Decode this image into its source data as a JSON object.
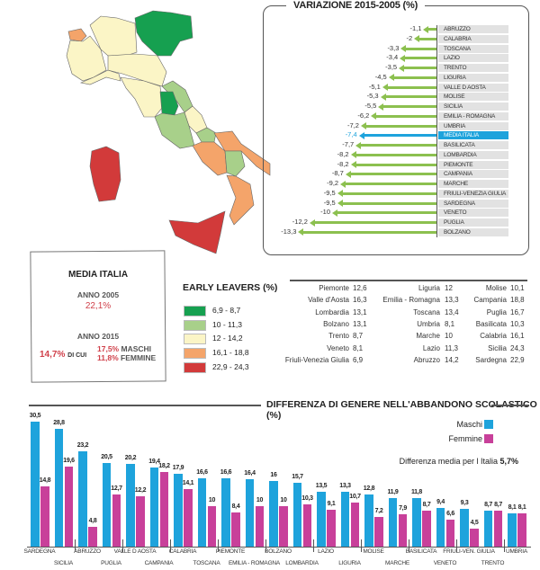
{
  "map": {
    "regions": [
      {
        "name": "valle-d-aosta",
        "color": "#f4a46a"
      },
      {
        "name": "piemonte",
        "color": "#fbf5c6"
      },
      {
        "name": "lombardia",
        "color": "#fbf5c6"
      },
      {
        "name": "trentino-veneto-friuli",
        "color": "#16a050"
      },
      {
        "name": "liguria",
        "color": "#fbf5c6"
      },
      {
        "name": "emilia-romagna",
        "color": "#fbf5c6"
      },
      {
        "name": "toscana",
        "color": "#fbf5c6"
      },
      {
        "name": "marche",
        "color": "#a8d08a"
      },
      {
        "name": "umbria",
        "color": "#16a050"
      },
      {
        "name": "lazio",
        "color": "#a8d08a"
      },
      {
        "name": "abruzzo",
        "color": "#fbf5c6"
      },
      {
        "name": "molise",
        "color": "#a8d08a"
      },
      {
        "name": "campania",
        "color": "#f4a46a"
      },
      {
        "name": "puglia",
        "color": "#f4a46a"
      },
      {
        "name": "basilicata",
        "color": "#a8d08a"
      },
      {
        "name": "calabria",
        "color": "#f4a46a"
      },
      {
        "name": "sicilia",
        "color": "#d23a3a"
      },
      {
        "name": "sardegna",
        "color": "#d23a3a"
      }
    ]
  },
  "variation": {
    "title": "VARIAZIONE 2015-2005 (%)",
    "rows": [
      {
        "label": "ABRUZZO",
        "value": -1.1,
        "text": "-1,1"
      },
      {
        "label": "CALABRIA",
        "value": -2,
        "text": "-2"
      },
      {
        "label": "TOSCANA",
        "value": -3.3,
        "text": "-3,3"
      },
      {
        "label": "LAZIO",
        "value": -3.4,
        "text": "-3,4"
      },
      {
        "label": "TRENTO",
        "value": -3.5,
        "text": "-3,5"
      },
      {
        "label": "LIGURIA",
        "value": -4.5,
        "text": "-4,5"
      },
      {
        "label": "VALLE D AOSTA",
        "value": -5.1,
        "text": "-5,1"
      },
      {
        "label": "MOLISE",
        "value": -5.3,
        "text": "-5,3"
      },
      {
        "label": "SICILIA",
        "value": -5.5,
        "text": "-5,5"
      },
      {
        "label": "EMILIA - ROMAGNA",
        "value": -6.2,
        "text": "-6,2"
      },
      {
        "label": "UMBRIA",
        "value": -7.2,
        "text": "-7,2"
      },
      {
        "label": "MEDIA ITALIA",
        "value": -7.4,
        "text": "-7,4",
        "highlight": true
      },
      {
        "label": "BASILICATA",
        "value": -7.7,
        "text": "-7,7"
      },
      {
        "label": "LOMBARDIA",
        "value": -8.2,
        "text": "-8,2"
      },
      {
        "label": "PIEMONTE",
        "value": -8.2,
        "text": "-8,2"
      },
      {
        "label": "CAMPANIA",
        "value": -8.7,
        "text": "-8,7"
      },
      {
        "label": "MARCHE",
        "value": -9.2,
        "text": "-9,2"
      },
      {
        "label": "FRIULI-VENEZIA GIULIA",
        "value": -9.5,
        "text": "-9,5"
      },
      {
        "label": "SARDEGNA",
        "value": -9.5,
        "text": "-9,5"
      },
      {
        "label": "VENETO",
        "value": -10,
        "text": "-10"
      },
      {
        "label": "PUGLIA",
        "value": -12.2,
        "text": "-12,2"
      },
      {
        "label": "BOLZANO",
        "value": -13.3,
        "text": "-13,3"
      }
    ]
  },
  "media": {
    "title": "MEDIA ITALIA",
    "y2005_label": "ANNO 2005",
    "y2005_value": "22,1%",
    "y2015_label": "ANNO 2015",
    "y2015_value": "14,7%",
    "di_cui": "DI CUI",
    "maschi_value": "17,5%",
    "maschi_label": "MASCHI",
    "femmine_value": "11,8%",
    "femmine_label": "FEMMINE"
  },
  "legend": {
    "title": "EARLY LEAVERS (%)",
    "items": [
      {
        "label": "6,9 - 8,7",
        "color": "#16a050"
      },
      {
        "label": "10 - 11,3",
        "color": "#a8d08a"
      },
      {
        "label": "12 - 14,2",
        "color": "#fbf5c6"
      },
      {
        "label": "16,1 - 18,8",
        "color": "#f4a46a"
      },
      {
        "label": "22,9 - 24,3",
        "color": "#d23a3a"
      }
    ]
  },
  "table": {
    "columns": [
      [
        [
          "Piemonte",
          "12,6"
        ],
        [
          "Valle d'Aosta",
          "16,3"
        ],
        [
          "Lombardia",
          "13,1"
        ],
        [
          "Bolzano",
          "13,1"
        ],
        [
          "Trento",
          "8,7"
        ],
        [
          "Veneto",
          "8,1"
        ],
        [
          "Friuli-Venezia Giulia",
          "6,9"
        ]
      ],
      [
        [
          "Liguria",
          "12"
        ],
        [
          "Emilia - Romagna",
          "13,3"
        ],
        [
          "Toscana",
          "13,4"
        ],
        [
          "Umbria",
          "8,1"
        ],
        [
          "Marche",
          "10"
        ],
        [
          "Lazio",
          "11,3"
        ],
        [
          "Abruzzo",
          "14,2"
        ]
      ],
      [
        [
          "Molise",
          "10,1"
        ],
        [
          "Campania",
          "18,8"
        ],
        [
          "Puglia",
          "16,7"
        ],
        [
          "Basilicata",
          "10,3"
        ],
        [
          "Calabria",
          "16,1"
        ],
        [
          "Sicilia",
          "24,3"
        ],
        [
          "Sardegna",
          "22,9"
        ]
      ]
    ]
  },
  "chart_data": {
    "type": "bar",
    "title": "DIFFERENZA DI GENERE NELL'ABBANDONO SCOLASTICO (%)",
    "note_label": "Differenza media per l Italia",
    "note_value": "5,7%",
    "categories": [
      "SARDEGNA",
      "SICILIA",
      "ABRUZZO",
      "PUGLIA",
      "VALLE D AOSTA",
      "CAMPANIA",
      "CALABRIA",
      "TOSCANA",
      "PIEMONTE",
      "EMILIA - ROMAGNA",
      "BOLZANO",
      "LOMBARDIA",
      "LAZIO",
      "LIGURIA",
      "MOLISE",
      "MARCHE",
      "BASILICATA",
      "VENETO",
      "FRIULI-VEN. GIULIA",
      "TRENTO",
      "UMBRIA"
    ],
    "series": [
      {
        "name": "Maschi",
        "color": "#1ea3dc",
        "values": [
          30.5,
          28.8,
          23.2,
          20.5,
          20.2,
          19.4,
          17.9,
          16.6,
          16.6,
          16.4,
          16,
          15.7,
          13.5,
          13.3,
          12.8,
          11.9,
          11.8,
          9.4,
          9.3,
          8.7,
          8.1
        ]
      },
      {
        "name": "Femmine",
        "color": "#c8409a",
        "values": [
          14.8,
          19.6,
          4.8,
          12.7,
          12.2,
          18.2,
          14.1,
          10,
          8.4,
          10,
          10,
          10.3,
          9.1,
          10.7,
          7.2,
          7.9,
          8.7,
          6.6,
          4.5,
          8.7,
          8.1
        ]
      }
    ],
    "ylim": [
      0,
      31
    ],
    "legend": "top-right"
  }
}
